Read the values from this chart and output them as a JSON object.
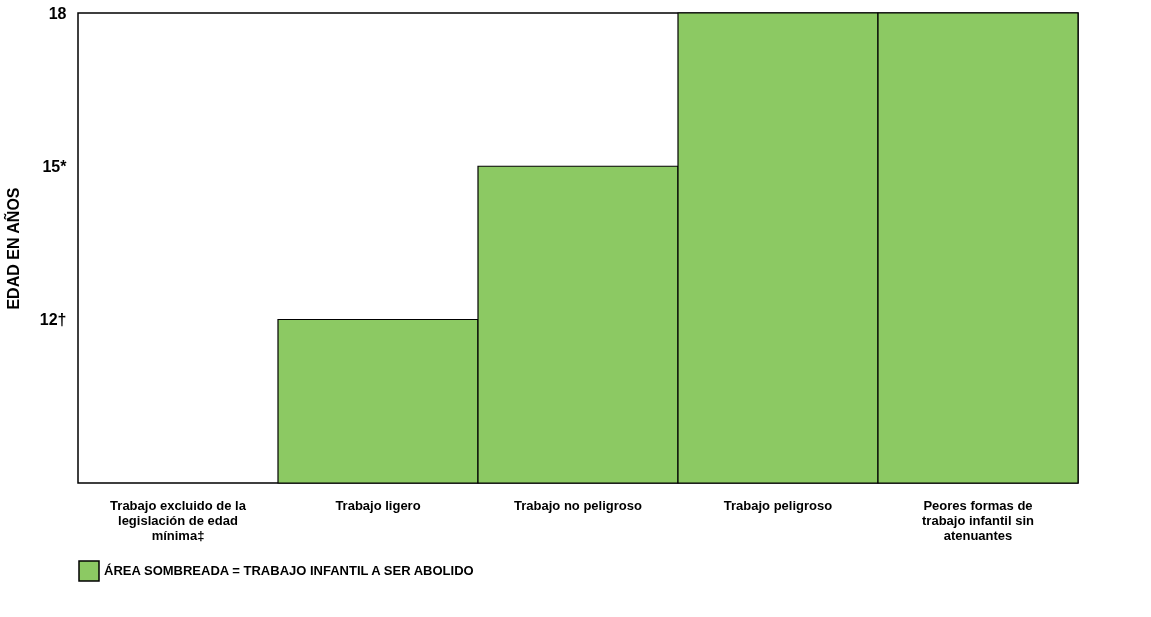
{
  "chart_data": {
    "type": "bar",
    "ylabel": "EDAD EN AÑOS",
    "categories": [
      "Trabajo excluido de la legislación de edad mínima‡",
      "Trabajo ligero",
      "Trabajo no peligroso",
      "Trabajo peligroso",
      "Peores formas de trabajo infantil sin atenuantes"
    ],
    "series": [
      {
        "name": "ÁREA SOMBREADA = TRABAJO INFANTIL A SER ABOLIDO",
        "color": "#8cc963",
        "values": [
          null,
          12,
          15,
          18,
          18
        ]
      }
    ],
    "ylim": [
      8.8,
      18
    ],
    "yticks": [
      {
        "value": 12,
        "label": "12†"
      },
      {
        "value": 15,
        "label": "15*"
      },
      18
    ],
    "grid": false,
    "legend": "bottom"
  }
}
